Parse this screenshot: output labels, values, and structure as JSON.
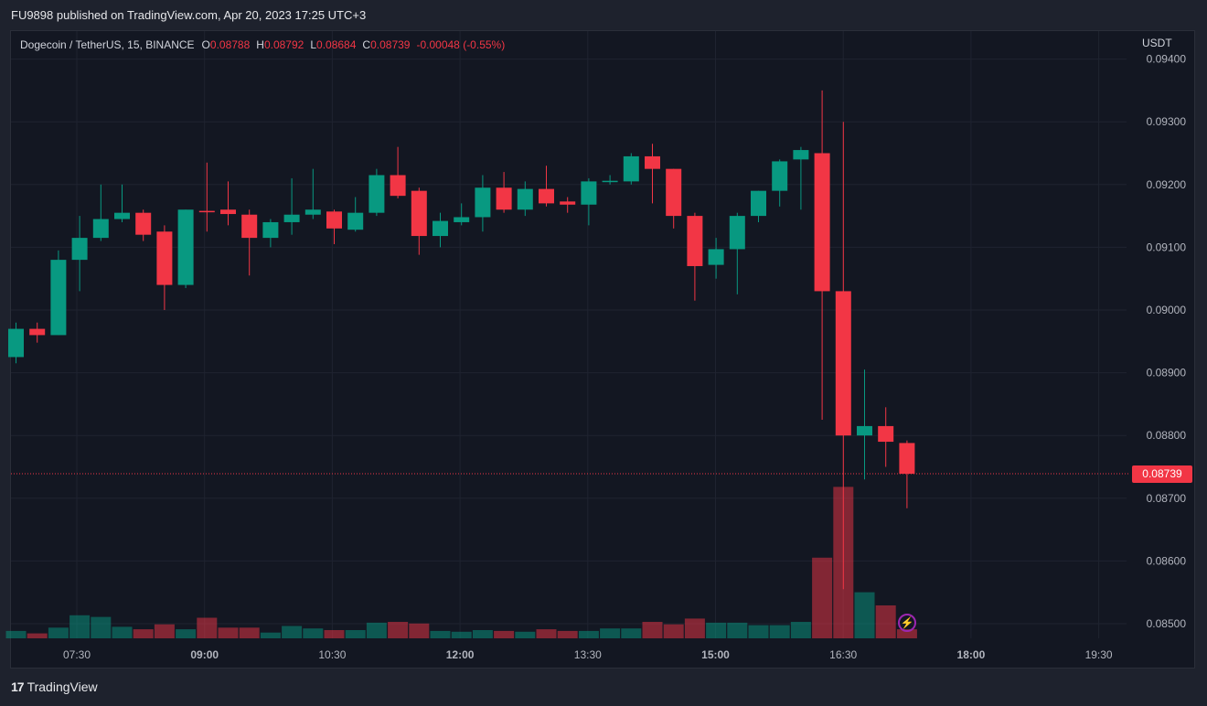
{
  "header": {
    "published_line": "FU9898 published on TradingView.com, Apr 20, 2023 17:25 UTC+3"
  },
  "legend": {
    "symbol": "Dogecoin / TetherUS, 15, BINANCE",
    "open_label": "O",
    "open": "0.08788",
    "high_label": "H",
    "high": "0.08792",
    "low_label": "L",
    "low": "0.08684",
    "close_label": "C",
    "close": "0.08739",
    "change": "-0.00048 (-0.55%)"
  },
  "price_axis": {
    "currency": "USDT",
    "current_price": "0.08739"
  },
  "footer": {
    "brand": "TradingView",
    "logo_icon": "tradingview-logo-icon"
  },
  "badges": {
    "lightning_icon": "lightning-icon"
  },
  "colors": {
    "up": "#089981",
    "down": "#f23645",
    "background": "#131722",
    "grid": "#1f2330"
  },
  "chart_data": {
    "type": "candlestick",
    "interval_minutes": 15,
    "y_ticks": [
      "0.08500",
      "0.08600",
      "0.08700",
      "0.08800",
      "0.08900",
      "0.09000",
      "0.09100",
      "0.09200",
      "0.09300",
      "0.09400"
    ],
    "x_ticks": [
      "07:30",
      "09:00",
      "10:30",
      "12:00",
      "13:30",
      "15:00",
      "16:30",
      "18:00",
      "19:30"
    ],
    "ylim": [
      0.08475,
      0.094
    ],
    "current_price": 0.08739,
    "candles": [
      {
        "o": 0.08925,
        "h": 0.0898,
        "l": 0.08915,
        "c": 0.0897,
        "v": 0.45
      },
      {
        "o": 0.0897,
        "h": 0.0898,
        "l": 0.08948,
        "c": 0.0896,
        "v": 0.3
      },
      {
        "o": 0.0896,
        "h": 0.09095,
        "l": 0.0896,
        "c": 0.0908,
        "v": 0.65
      },
      {
        "o": 0.0908,
        "h": 0.0915,
        "l": 0.0903,
        "c": 0.09115,
        "v": 1.4
      },
      {
        "o": 0.09115,
        "h": 0.092,
        "l": 0.0911,
        "c": 0.09145,
        "v": 1.3
      },
      {
        "o": 0.09145,
        "h": 0.092,
        "l": 0.0914,
        "c": 0.09155,
        "v": 0.7
      },
      {
        "o": 0.09155,
        "h": 0.0916,
        "l": 0.0911,
        "c": 0.0912,
        "v": 0.55
      },
      {
        "o": 0.09125,
        "h": 0.09135,
        "l": 0.09,
        "c": 0.0904,
        "v": 0.85
      },
      {
        "o": 0.0904,
        "h": 0.0916,
        "l": 0.09035,
        "c": 0.0916,
        "v": 0.55
      },
      {
        "o": 0.09158,
        "h": 0.09235,
        "l": 0.09125,
        "c": 0.09156,
        "v": 1.25
      },
      {
        "o": 0.0916,
        "h": 0.09205,
        "l": 0.09135,
        "c": 0.09153,
        "v": 0.65
      },
      {
        "o": 0.09152,
        "h": 0.0916,
        "l": 0.09055,
        "c": 0.09115,
        "v": 0.65
      },
      {
        "o": 0.09115,
        "h": 0.09145,
        "l": 0.091,
        "c": 0.0914,
        "v": 0.35
      },
      {
        "o": 0.0914,
        "h": 0.0921,
        "l": 0.0912,
        "c": 0.09152,
        "v": 0.75
      },
      {
        "o": 0.09152,
        "h": 0.09225,
        "l": 0.09145,
        "c": 0.0916,
        "v": 0.6
      },
      {
        "o": 0.09157,
        "h": 0.0916,
        "l": 0.09105,
        "c": 0.0913,
        "v": 0.5
      },
      {
        "o": 0.09128,
        "h": 0.0918,
        "l": 0.09125,
        "c": 0.09155,
        "v": 0.5
      },
      {
        "o": 0.09155,
        "h": 0.09225,
        "l": 0.0915,
        "c": 0.09215,
        "v": 0.95
      },
      {
        "o": 0.09215,
        "h": 0.0926,
        "l": 0.09178,
        "c": 0.09182,
        "v": 1.0
      },
      {
        "o": 0.0919,
        "h": 0.09195,
        "l": 0.09088,
        "c": 0.09118,
        "v": 0.9
      },
      {
        "o": 0.09118,
        "h": 0.09155,
        "l": 0.091,
        "c": 0.09142,
        "v": 0.45
      },
      {
        "o": 0.0914,
        "h": 0.0917,
        "l": 0.09135,
        "c": 0.09148,
        "v": 0.4
      },
      {
        "o": 0.09148,
        "h": 0.09215,
        "l": 0.09125,
        "c": 0.09195,
        "v": 0.5
      },
      {
        "o": 0.09195,
        "h": 0.0922,
        "l": 0.09155,
        "c": 0.0916,
        "v": 0.45
      },
      {
        "o": 0.0916,
        "h": 0.09205,
        "l": 0.0915,
        "c": 0.09193,
        "v": 0.4
      },
      {
        "o": 0.09193,
        "h": 0.0923,
        "l": 0.09165,
        "c": 0.0917,
        "v": 0.55
      },
      {
        "o": 0.09173,
        "h": 0.0918,
        "l": 0.09155,
        "c": 0.09168,
        "v": 0.45
      },
      {
        "o": 0.09168,
        "h": 0.0921,
        "l": 0.09135,
        "c": 0.09205,
        "v": 0.45
      },
      {
        "o": 0.09204,
        "h": 0.09215,
        "l": 0.092,
        "c": 0.09206,
        "v": 0.6
      },
      {
        "o": 0.09205,
        "h": 0.0925,
        "l": 0.092,
        "c": 0.09245,
        "v": 0.6
      },
      {
        "o": 0.09245,
        "h": 0.09265,
        "l": 0.0917,
        "c": 0.09225,
        "v": 1.0
      },
      {
        "o": 0.09225,
        "h": 0.09225,
        "l": 0.0913,
        "c": 0.0915,
        "v": 0.85
      },
      {
        "o": 0.0915,
        "h": 0.09155,
        "l": 0.09015,
        "c": 0.0907,
        "v": 1.2
      },
      {
        "o": 0.09072,
        "h": 0.09115,
        "l": 0.0905,
        "c": 0.09097,
        "v": 0.95
      },
      {
        "o": 0.09097,
        "h": 0.09155,
        "l": 0.09025,
        "c": 0.0915,
        "v": 0.95
      },
      {
        "o": 0.0915,
        "h": 0.0919,
        "l": 0.0914,
        "c": 0.0919,
        "v": 0.8
      },
      {
        "o": 0.0919,
        "h": 0.0924,
        "l": 0.09165,
        "c": 0.09237,
        "v": 0.8
      },
      {
        "o": 0.0924,
        "h": 0.0926,
        "l": 0.0916,
        "c": 0.09255,
        "v": 1.0
      },
      {
        "o": 0.0925,
        "h": 0.0935,
        "l": 0.08825,
        "c": 0.0903,
        "v": 4.9
      },
      {
        "o": 0.0903,
        "h": 0.093,
        "l": 0.08555,
        "c": 0.088,
        "v": 9.2
      },
      {
        "o": 0.088,
        "h": 0.08905,
        "l": 0.0873,
        "c": 0.08815,
        "v": 2.8
      },
      {
        "o": 0.08815,
        "h": 0.08845,
        "l": 0.0875,
        "c": 0.0879,
        "v": 2.0
      },
      {
        "o": 0.08788,
        "h": 0.08792,
        "l": 0.08684,
        "c": 0.08739,
        "v": 0.55
      }
    ]
  }
}
